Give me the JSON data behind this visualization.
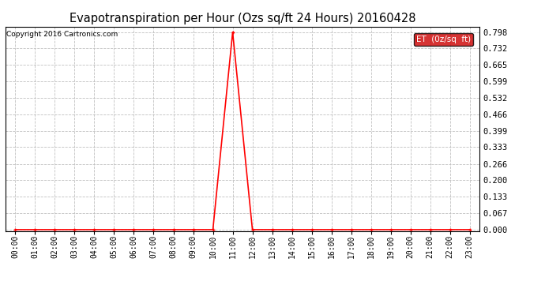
{
  "title": "Evapotranspiration per Hour (Ozs sq/ft 24 Hours) 20160428",
  "copyright": "Copyright 2016 Cartronics.com",
  "line_color": "#ff0000",
  "background_color": "#ffffff",
  "plot_bg_color": "#f0f0f0",
  "grid_color": "#c0c0c0",
  "legend_label": "ET  (0z/sq  ft)",
  "legend_bg": "#cc0000",
  "legend_text_color": "#ffffff",
  "yticks": [
    0.0,
    0.067,
    0.133,
    0.2,
    0.266,
    0.333,
    0.399,
    0.466,
    0.532,
    0.599,
    0.665,
    0.732,
    0.798
  ],
  "ylim": [
    -0.005,
    0.82
  ],
  "hours": [
    "00:00",
    "01:00",
    "02:00",
    "03:00",
    "04:00",
    "05:00",
    "06:00",
    "07:00",
    "08:00",
    "09:00",
    "10:00",
    "11:00",
    "12:00",
    "13:00",
    "14:00",
    "15:00",
    "16:00",
    "17:00",
    "18:00",
    "19:00",
    "20:00",
    "21:00",
    "22:00",
    "23:00"
  ],
  "x_values": [
    0,
    1,
    2,
    3,
    4,
    5,
    6,
    7,
    8,
    9,
    10,
    11,
    12,
    13,
    14,
    15,
    16,
    17,
    18,
    19,
    20,
    21,
    22,
    23
  ],
  "y_values": [
    0,
    0,
    0,
    0,
    0,
    0,
    0,
    0,
    0,
    0,
    0,
    0.798,
    0,
    0,
    0,
    0,
    0,
    0,
    0,
    0,
    0,
    0,
    0,
    0
  ],
  "marker": "+"
}
